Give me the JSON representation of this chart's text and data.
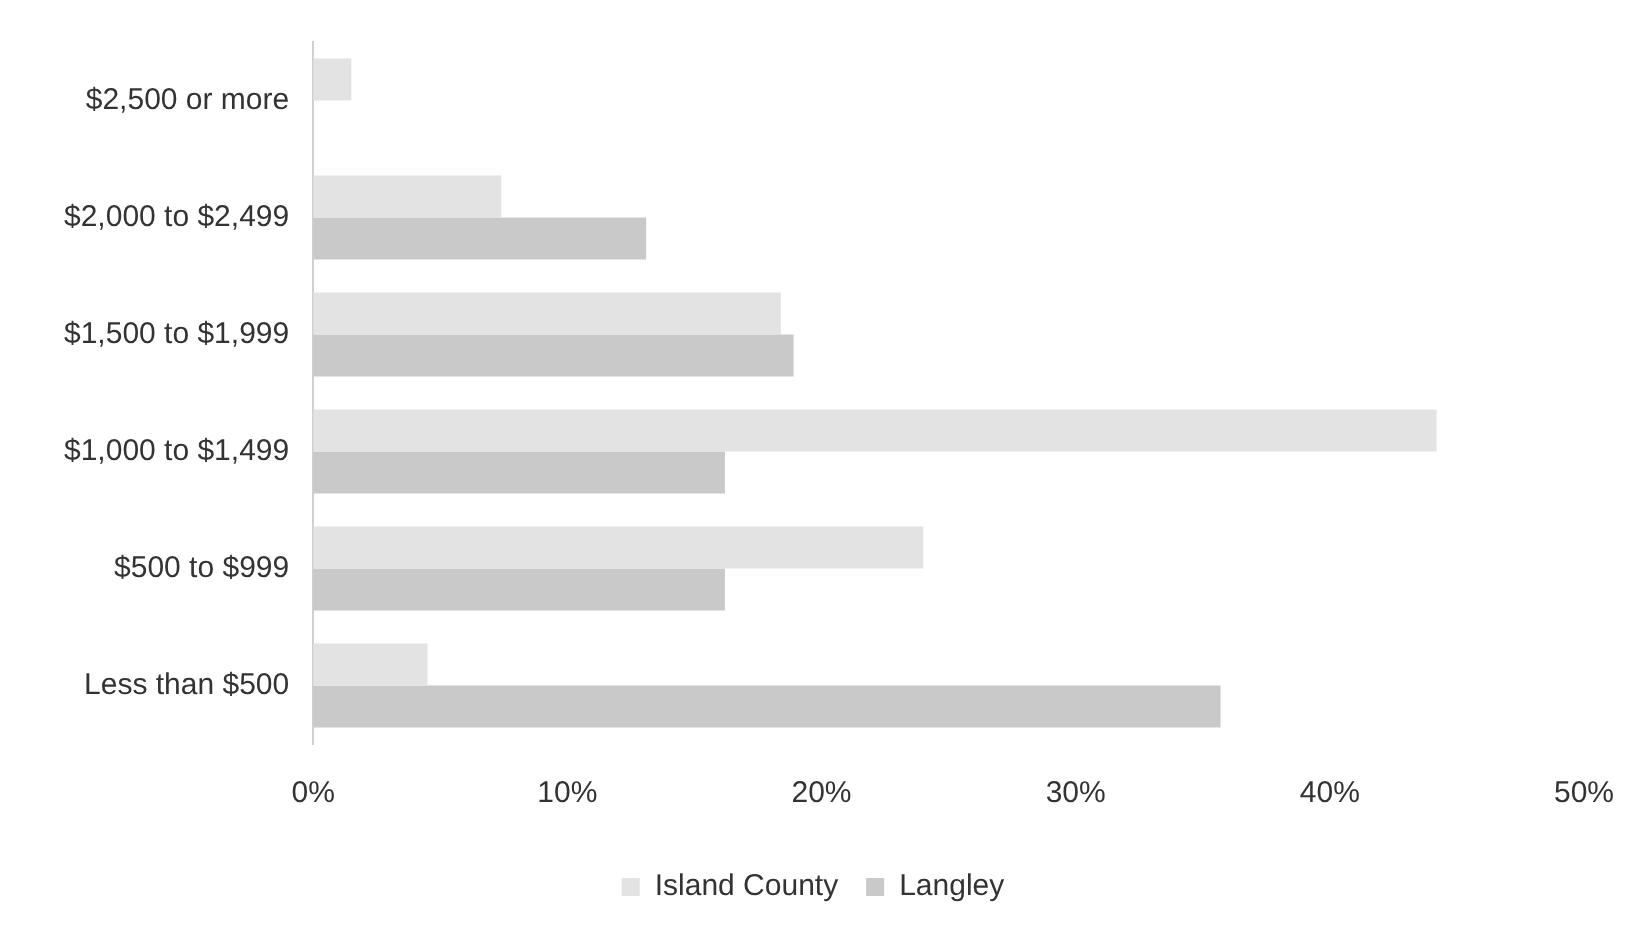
{
  "chart_data": {
    "type": "bar",
    "orientation": "horizontal",
    "categories": [
      "$2,500 or more",
      "$2,000 to $2,499",
      "$1,500 to $1,999",
      "$1,000 to $1,499",
      "$500 to $999",
      "Less than $500"
    ],
    "series": [
      {
        "name": "Island County",
        "color": "#e3e3e3",
        "values": [
          1.5,
          7.4,
          18.4,
          44.2,
          24.0,
          4.5
        ]
      },
      {
        "name": "Langley",
        "color": "#c9c9c9",
        "values": [
          0,
          13.1,
          18.9,
          16.2,
          16.2,
          35.7
        ]
      }
    ],
    "xlim": [
      0,
      50
    ],
    "xticks": [
      {
        "value": 0,
        "label": "0%"
      },
      {
        "value": 10,
        "label": "10%"
      },
      {
        "value": 20,
        "label": "20%"
      },
      {
        "value": 30,
        "label": "30%"
      },
      {
        "value": 40,
        "label": "40%"
      },
      {
        "value": 50,
        "label": "50%"
      }
    ],
    "grid": false,
    "legend": "bottom"
  }
}
